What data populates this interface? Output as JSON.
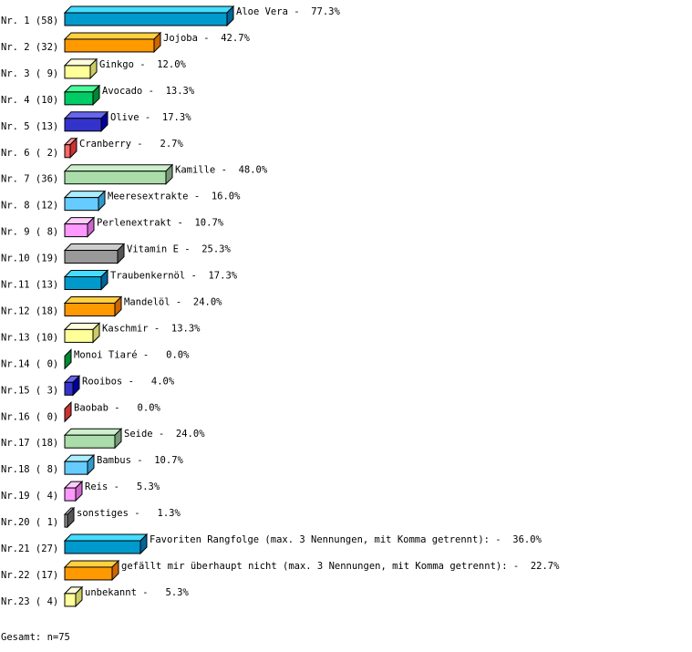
{
  "chart_data": {
    "type": "bar",
    "orientation": "horizontal",
    "style": "3d",
    "palette": [
      {
        "front": "#0099cc",
        "top": "#44ddff",
        "side": "#006699"
      },
      {
        "front": "#ff9900",
        "top": "#ffd040",
        "side": "#cc6600"
      },
      {
        "front": "#ffff99",
        "top": "#ffffdd",
        "side": "#cccc66"
      },
      {
        "front": "#00cc66",
        "top": "#44ff99",
        "side": "#008833"
      },
      {
        "front": "#3333cc",
        "top": "#6666ee",
        "side": "#000099"
      },
      {
        "front": "#ff6666",
        "top": "#ff9999",
        "side": "#cc3333"
      },
      {
        "front": "#aaddaa",
        "top": "#ccf0cc",
        "side": "#779977"
      },
      {
        "front": "#66ccff",
        "top": "#aaeeff",
        "side": "#3399cc"
      },
      {
        "front": "#ff99ff",
        "top": "#ffccff",
        "side": "#cc66cc"
      },
      {
        "front": "#999999",
        "top": "#cccccc",
        "side": "#555555"
      }
    ],
    "rows": [
      {
        "label": "Nr. 1 (58)",
        "name": "Aloe Vera",
        "count": 58,
        "percent": "77.3%"
      },
      {
        "label": "Nr. 2 (32)",
        "name": "Jojoba",
        "count": 32,
        "percent": "42.7%"
      },
      {
        "label": "Nr. 3 ( 9)",
        "name": "Ginkgo",
        "count": 9,
        "percent": "12.0%"
      },
      {
        "label": "Nr. 4 (10)",
        "name": "Avocado",
        "count": 10,
        "percent": "13.3%"
      },
      {
        "label": "Nr. 5 (13)",
        "name": "Olive",
        "count": 13,
        "percent": "17.3%"
      },
      {
        "label": "Nr. 6 ( 2)",
        "name": "Cranberry",
        "count": 2,
        "percent": " 2.7%"
      },
      {
        "label": "Nr. 7 (36)",
        "name": "Kamille",
        "count": 36,
        "percent": "48.0%"
      },
      {
        "label": "Nr. 8 (12)",
        "name": "Meeresextrakte",
        "count": 12,
        "percent": "16.0%"
      },
      {
        "label": "Nr. 9 ( 8)",
        "name": "Perlenextrakt",
        "count": 8,
        "percent": "10.7%"
      },
      {
        "label": "Nr.10 (19)",
        "name": "Vitamin E",
        "count": 19,
        "percent": "25.3%"
      },
      {
        "label": "Nr.11 (13)",
        "name": "Traubenkernöl",
        "count": 13,
        "percent": "17.3%"
      },
      {
        "label": "Nr.12 (18)",
        "name": "Mandelöl",
        "count": 18,
        "percent": "24.0%"
      },
      {
        "label": "Nr.13 (10)",
        "name": "Kaschmir",
        "count": 10,
        "percent": "13.3%"
      },
      {
        "label": "Nr.14 ( 0)",
        "name": "Monoi Tiaré",
        "count": 0,
        "percent": " 0.0%"
      },
      {
        "label": "Nr.15 ( 3)",
        "name": "Rooibos",
        "count": 3,
        "percent": " 4.0%"
      },
      {
        "label": "Nr.16 ( 0)",
        "name": "Baobab",
        "count": 0,
        "percent": " 0.0%"
      },
      {
        "label": "Nr.17 (18)",
        "name": "Seide",
        "count": 18,
        "percent": "24.0%"
      },
      {
        "label": "Nr.18 ( 8)",
        "name": "Bambus",
        "count": 8,
        "percent": "10.7%"
      },
      {
        "label": "Nr.19 ( 4)",
        "name": "Reis",
        "count": 4,
        "percent": " 5.3%"
      },
      {
        "label": "Nr.20 ( 1)",
        "name": "sonstiges",
        "count": 1,
        "percent": " 1.3%"
      },
      {
        "label": "Nr.21 (27)",
        "name": "Favoriten Rangfolge (max. 3 Nennungen, mit Komma getrennt):",
        "count": 27,
        "percent": "36.0%"
      },
      {
        "label": "Nr.22 (17)",
        "name": "gefällt mir überhaupt nicht (max. 3 Nennungen, mit Komma getrennt):",
        "count": 17,
        "percent": "22.7%"
      },
      {
        "label": "Nr.23 ( 4)",
        "name": "unbekannt",
        "count": 4,
        "percent": " 5.3%"
      }
    ],
    "total": "Gesamt: n=75"
  }
}
